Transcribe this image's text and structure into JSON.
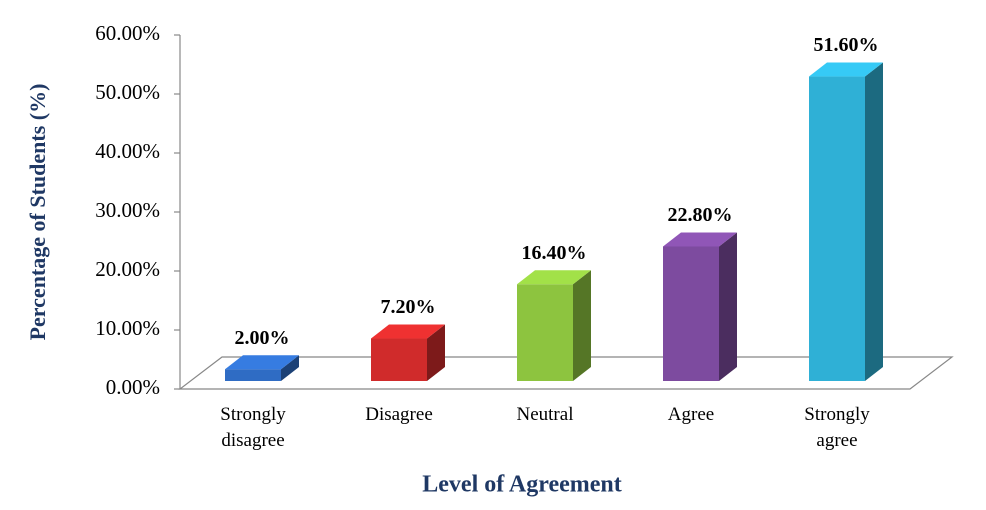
{
  "chart_data": {
    "type": "bar3d",
    "x_label": "Level of Agreement",
    "y_label": "Percentage of Students (%)",
    "categories": [
      "Strongly disagree",
      "Disagree",
      "Neutral",
      "Agree",
      "Strongly agree"
    ],
    "values": [
      2.0,
      7.2,
      16.4,
      22.8,
      51.6
    ],
    "value_labels": [
      "2.00%",
      "7.20%",
      "16.40%",
      "22.80%",
      "51.60%"
    ],
    "colors": [
      "#2f6cc4",
      "#d02b2b",
      "#8dc43f",
      "#7d4b9f",
      "#2fb0d6"
    ],
    "ylim": [
      0,
      60
    ],
    "yticks": [
      {
        "value": 0,
        "label": "0.00%"
      },
      {
        "value": 10,
        "label": "10.00%"
      },
      {
        "value": 20,
        "label": "20.00%"
      },
      {
        "value": 30,
        "label": "30.00%"
      },
      {
        "value": 40,
        "label": "40.00%"
      },
      {
        "value": 50,
        "label": "50.00%"
      },
      {
        "value": 60,
        "label": "60.00%"
      }
    ]
  }
}
